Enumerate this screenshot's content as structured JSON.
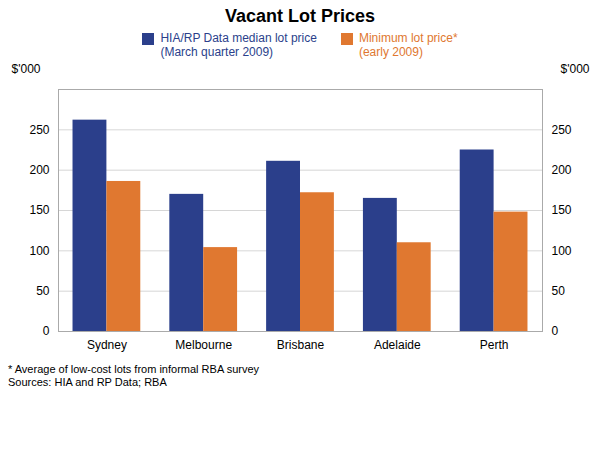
{
  "chart_data": {
    "type": "bar",
    "title": "Vacant Lot Prices",
    "categories": [
      "Sydney",
      "Melbourne",
      "Brisbane",
      "Adelaide",
      "Perth"
    ],
    "series": [
      {
        "name": "HIA/RP Data median lot price\n(March quarter 2009)",
        "color": "#2B3F8B",
        "values": [
          262,
          170,
          211,
          165,
          225
        ]
      },
      {
        "name": "Minimum lot price*\n(early 2009)",
        "color": "#E07830",
        "values": [
          186,
          104,
          172,
          110,
          148
        ]
      }
    ],
    "ylabel": "$'000",
    "y2label": "$'000",
    "ylim": [
      0,
      300
    ],
    "yticks": [
      0,
      50,
      100,
      150,
      200,
      250
    ],
    "y2lim": [
      0,
      300
    ],
    "y2ticks": [
      0,
      50,
      100,
      150,
      200,
      250
    ],
    "grid": true,
    "legend": "top",
    "footnotes": [
      "* Average of low-cost lots from informal RBA survey",
      "Sources: HIA and RP Data; RBA"
    ]
  }
}
